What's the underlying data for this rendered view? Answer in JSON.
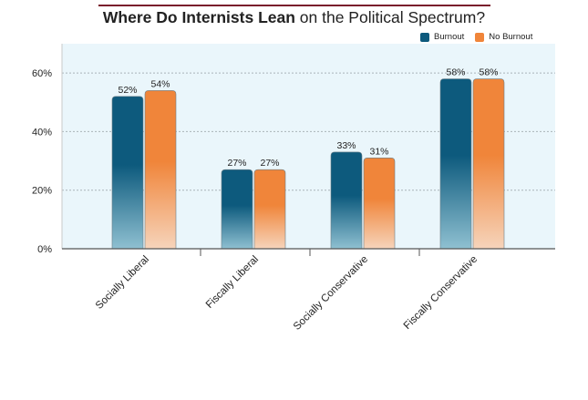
{
  "chart_data": {
    "type": "bar",
    "title_bold": "Where Do Internists Lean",
    "title_rest": " on the Political Spectrum?",
    "categories": [
      "Socially Liberal",
      "Fiscally Liberal",
      "Socially Conservative",
      "Fiscally Conservative"
    ],
    "series": [
      {
        "name": "Burnout",
        "values": [
          52,
          27,
          33,
          58
        ],
        "labels": [
          "52%",
          "27%",
          "33%",
          "58%"
        ],
        "color": "#0d5a7d",
        "light": "#8fc0d1"
      },
      {
        "name": "No Burnout",
        "values": [
          54,
          27,
          31,
          58
        ],
        "labels": [
          "54%",
          "27%",
          "31%",
          "58%"
        ],
        "color": "#f0853a",
        "light": "#f6d4bb"
      }
    ],
    "yticks": [
      "0%",
      "20%",
      "40%",
      "60%"
    ],
    "ytick_values": [
      0,
      20,
      40,
      60
    ],
    "ylim": [
      0,
      70
    ],
    "grid": true,
    "legend_position": "top-right"
  }
}
